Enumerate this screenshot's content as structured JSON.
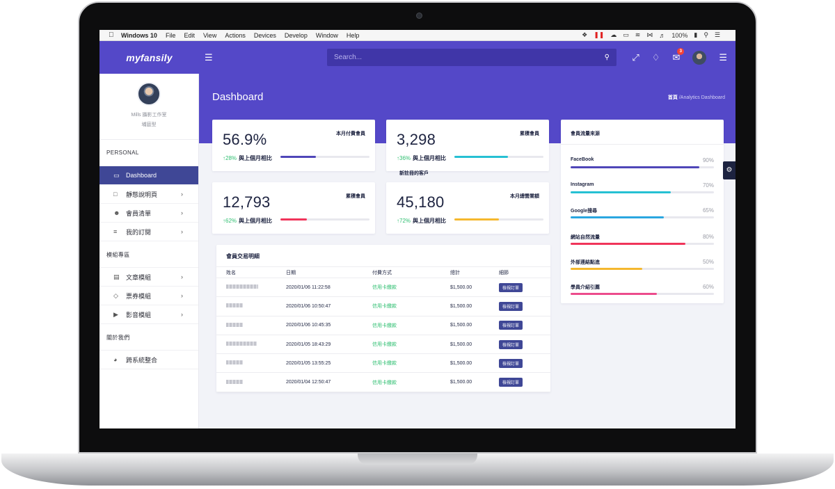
{
  "menubar": {
    "app": "Windows 10",
    "items": [
      "File",
      "Edit",
      "View",
      "Actions",
      "Devices",
      "Develop",
      "Window",
      "Help"
    ],
    "battery": "100%"
  },
  "header": {
    "logo": "myfansily",
    "search_placeholder": "Search...",
    "mail_badge": "3",
    "accent": "#5448c8"
  },
  "sidebar": {
    "profile_name": "Mills 攝影工作室",
    "profile_role": "埔庭型",
    "sections": [
      {
        "title": "PERSONAL",
        "items": [
          {
            "label": "Dashboard",
            "icon": "monitor-icon"
          },
          {
            "label": "靜態說明頁",
            "icon": "file-icon"
          },
          {
            "label": "會員清單",
            "icon": "users-icon"
          },
          {
            "label": "我的訂閱",
            "icon": "list-icon"
          }
        ]
      },
      {
        "title": "模組專區",
        "items": [
          {
            "label": "文章模組",
            "icon": "document-icon"
          },
          {
            "label": "票券模組",
            "icon": "tag-icon"
          },
          {
            "label": "影音模組",
            "icon": "video-icon"
          }
        ]
      },
      {
        "title": "關於我們",
        "items": [
          {
            "label": "跨系統整合",
            "icon": "headphones-icon"
          }
        ]
      }
    ]
  },
  "page": {
    "title": "Dashboard",
    "breadcrumb_home": "首頁",
    "breadcrumb_current": "/Analytics Dashboard"
  },
  "stats": [
    {
      "value": "56.9%",
      "label": "本月付費會員",
      "delta": "↑28%",
      "compare": "與上個月相比",
      "progress": 0.4,
      "color": "#4f46b8"
    },
    {
      "value": "3,298",
      "label": "累積會員",
      "delta": "↑36%",
      "compare": "與上個月相比",
      "progress": 0.6,
      "color": "#26c0d3"
    },
    {
      "value": "12,793",
      "label": "累積會員",
      "delta": "↑62%",
      "compare": "與上個月相比",
      "progress": 0.3,
      "color": "#f0345a"
    },
    {
      "value": "45,180",
      "label": "本月總營業額",
      "delta": "↑72%",
      "compare": "與上個月相比",
      "progress": 0.5,
      "color": "#f5b82e"
    }
  ],
  "new_customers_label": "新註冊的客戶",
  "transactions": {
    "title": "會員交易明細",
    "columns": [
      "姓名",
      "日期",
      "付費方式",
      "總計",
      "細節"
    ],
    "rows": [
      {
        "date": "2020/01/06 11:22:58",
        "method": "信用卡繳款",
        "total": "$1,500.00",
        "action": "檢視訂單"
      },
      {
        "date": "2020/01/06 10:50:47",
        "method": "信用卡繳款",
        "total": "$1,500.00",
        "action": "檢視訂單"
      },
      {
        "date": "2020/01/06 10:45:35",
        "method": "信用卡繳款",
        "total": "$1,500.00",
        "action": "檢視訂單"
      },
      {
        "date": "2020/01/05 18:43:29",
        "method": "信用卡繳款",
        "total": "$1,500.00",
        "action": "檢視訂單"
      },
      {
        "date": "2020/01/05 13:55:25",
        "method": "信用卡繳款",
        "total": "$1,500.00",
        "action": "檢視訂單"
      },
      {
        "date": "2020/01/04 12:50:47",
        "method": "信用卡繳款",
        "total": "$1,500.00",
        "action": "檢視訂單"
      }
    ]
  },
  "traffic": {
    "title": "會員流量來源",
    "sources": [
      {
        "name": "FaceBook",
        "pct": "90%",
        "value": 0.9,
        "color": "#4f46b8"
      },
      {
        "name": "Instagram",
        "pct": "70%",
        "value": 0.7,
        "color": "#26c0d3"
      },
      {
        "name": "Google搜尋",
        "pct": "65%",
        "value": 0.65,
        "color": "#2aa6e0"
      },
      {
        "name": "網站自然流量",
        "pct": "80%",
        "value": 0.8,
        "color": "#f0345a"
      },
      {
        "name": "外部連結點進",
        "pct": "50%",
        "value": 0.5,
        "color": "#f5b82e"
      },
      {
        "name": "學員介紹引薦",
        "pct": "60%",
        "value": 0.6,
        "color": "#ec4c8c"
      }
    ]
  }
}
